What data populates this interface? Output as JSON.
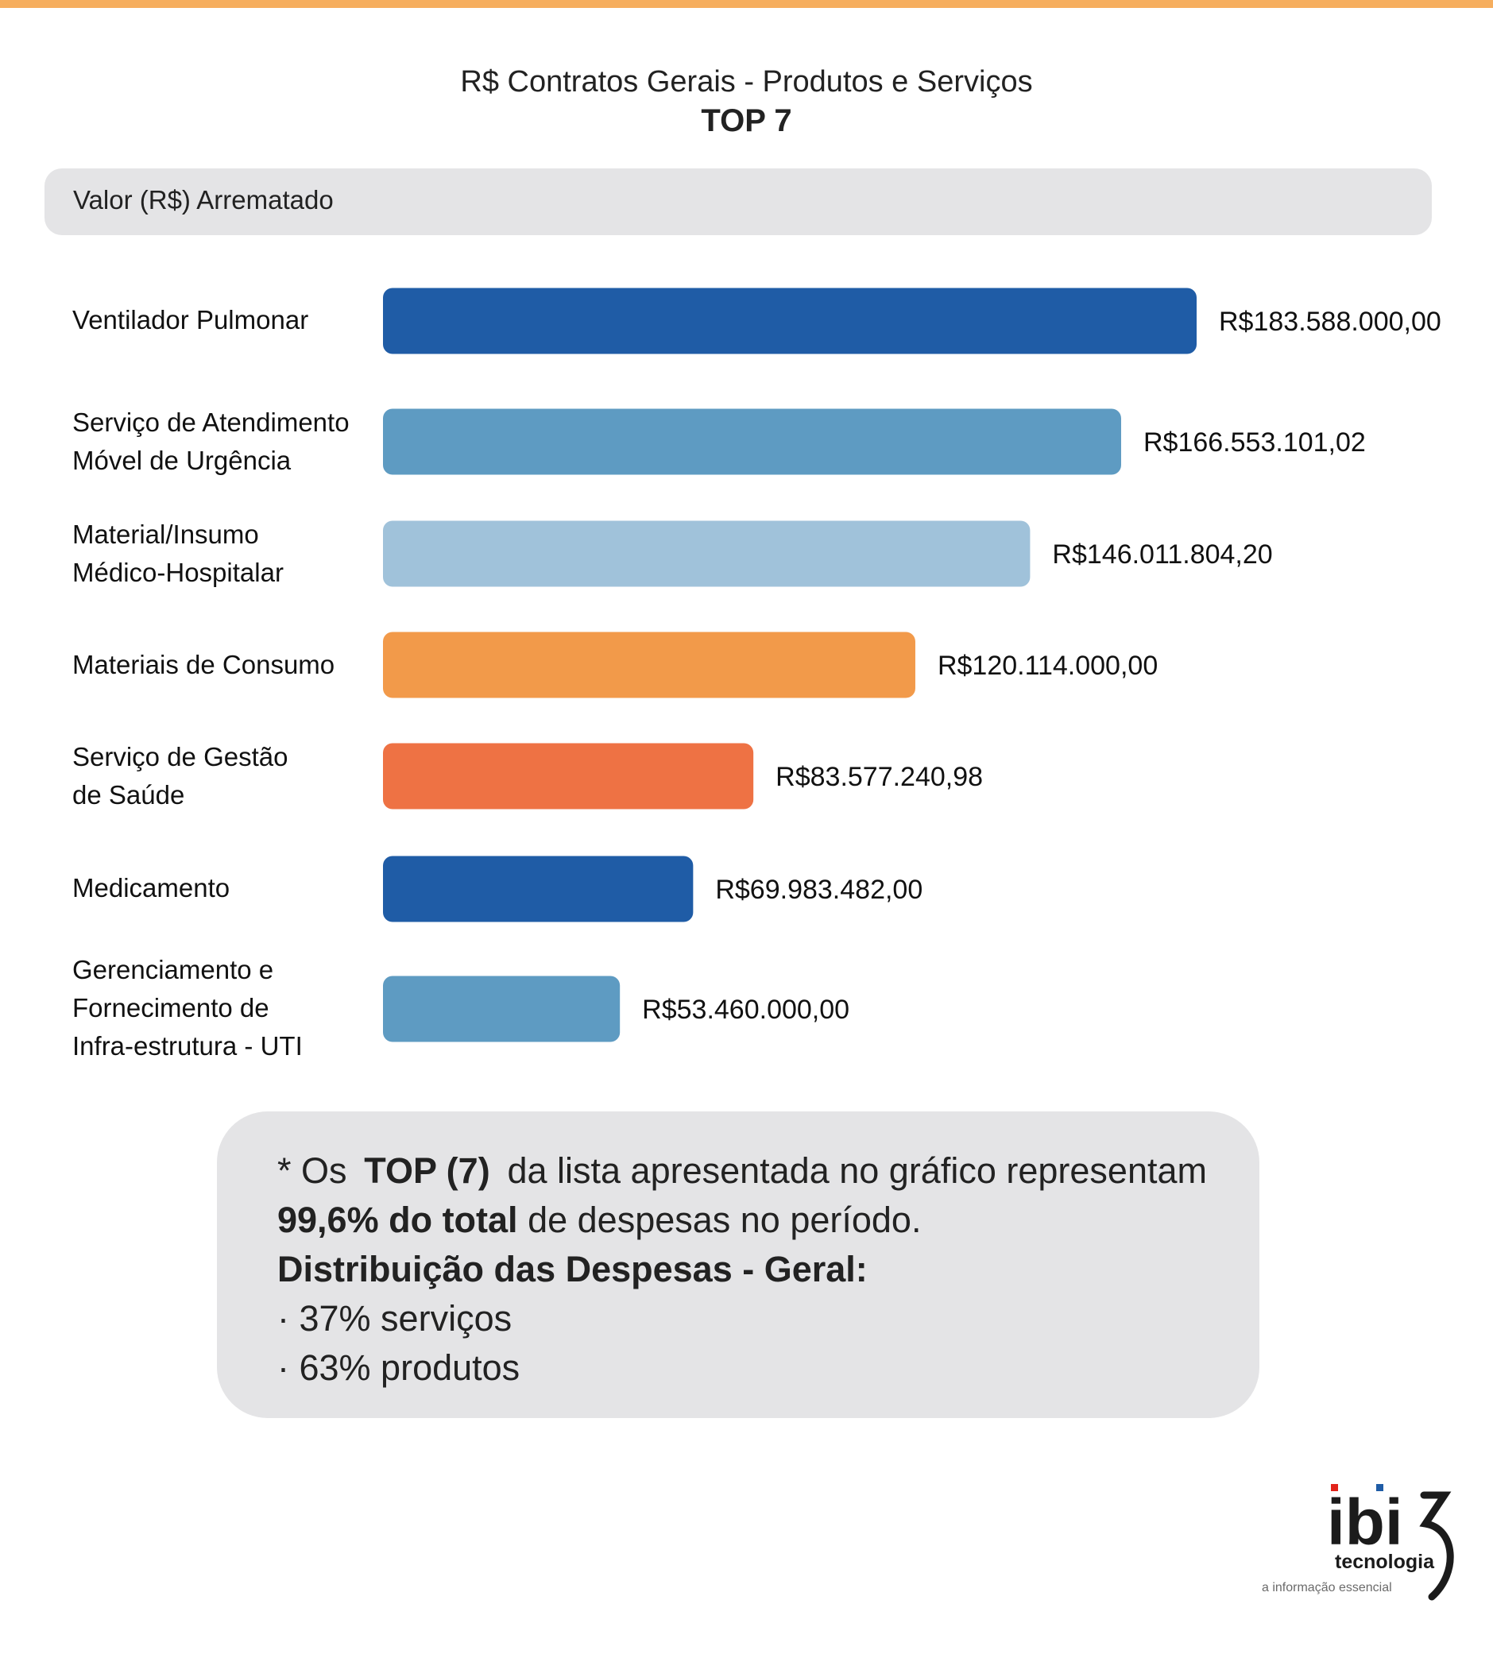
{
  "header": {
    "title": "R$ Contratos Gerais - Produtos e Serviços",
    "subtitle": "TOP 7"
  },
  "chart_data": {
    "type": "bar",
    "orientation": "horizontal",
    "axis_label": "Valor (R$) Arrematado",
    "categories": [
      "Ventilador Pulmonar",
      "Serviço de Atendimento\nMóvel de Urgência",
      "Material/Insumo\nMédico-Hospitalar",
      "Materiais de Consumo",
      "Serviço de Gestão\nde Saúde",
      "Medicamento",
      "Gerenciamento e\nFornecimento de\nInfra-estrutura - UTI"
    ],
    "values": [
      183588000.0,
      166553101.02,
      146011804.2,
      120114000.0,
      83577240.98,
      69983482.0,
      53460000.0
    ],
    "value_labels": [
      "R$183.588.000,00",
      "R$166.553.101,02",
      "R$146.011.804,20",
      "R$120.114.000,00",
      "R$83.577.240,98",
      "R$69.983.482,00",
      "R$53.460.000,00"
    ],
    "bar_colors": [
      "#1f5ca6",
      "#5e9bc2",
      "#a0c2da",
      "#f29a4a",
      "#ee7244",
      "#1f5ca6",
      "#5e9bc2"
    ],
    "grid": false,
    "legend": "none"
  },
  "note": {
    "l1_a": "* Os ",
    "l1_b": "TOP (7)",
    "l1_c": " da lista apresentada no gráfico representam",
    "l2_a": "99,6% do total",
    "l2_b": " de despesas no período.",
    "l3": "Distribuição das Despesas - Geral:",
    "l4": "· 37% serviços",
    "l5": "· 63% produtos"
  },
  "logo": {
    "name": "ibi",
    "line1": "tecnologia",
    "line2": "a informação essencial",
    "colors": {
      "dark": "#1b1b1b",
      "red": "#e2231a",
      "blue": "#1f5ca6",
      "grey": "#6b6b6b"
    }
  }
}
